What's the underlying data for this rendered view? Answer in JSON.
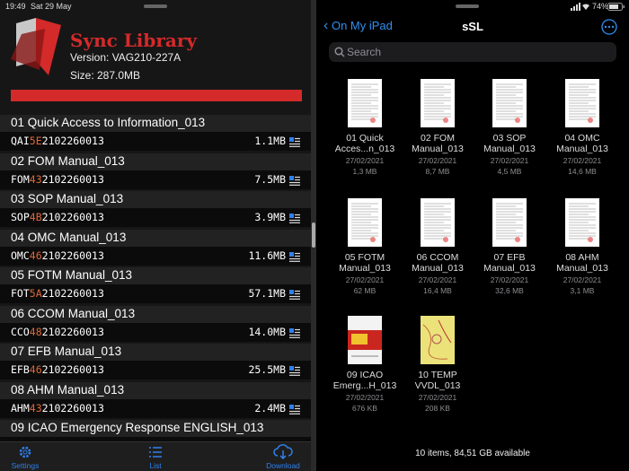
{
  "status": {
    "time": "19:49",
    "date": "Sat 29 May",
    "battery": "74%"
  },
  "library": {
    "title": "Sync Library",
    "version": "Version: VAG210-227A",
    "size": "Size: 287.0MB",
    "items": [
      {
        "name": "01 Quick Access to Information_013",
        "code": [
          "QAI",
          "5E",
          "2102260013"
        ],
        "size": "1.1MB"
      },
      {
        "name": "02 FOM Manual_013",
        "code": [
          "FOM",
          "43",
          "2102260013"
        ],
        "size": "7.5MB"
      },
      {
        "name": "03 SOP Manual_013",
        "code": [
          "SOP",
          "4B",
          "2102260013"
        ],
        "size": "3.9MB"
      },
      {
        "name": "04 OMC Manual_013",
        "code": [
          "OMC",
          "46",
          "2102260013"
        ],
        "size": "11.6MB"
      },
      {
        "name": "05 FOTM Manual_013",
        "code": [
          "FOT",
          "5A",
          "2102260013"
        ],
        "size": "57.1MB"
      },
      {
        "name": "06 CCOM Manual_013",
        "code": [
          "CCO",
          "48",
          "2102260013"
        ],
        "size": "14.0MB"
      },
      {
        "name": "07 EFB Manual_013",
        "code": [
          "EFB",
          "46",
          "2102260013"
        ],
        "size": "25.5MB"
      },
      {
        "name": "08 AHM Manual_013",
        "code": [
          "AHM",
          "43",
          "2102260013"
        ],
        "size": "2.4MB"
      },
      {
        "name": "09 ICAO Emergency Response ENGLISH_013"
      }
    ],
    "tabs": [
      "Settings",
      "List",
      "Download"
    ]
  },
  "files": {
    "back": "On My iPad",
    "title": "sSL",
    "search": "Search",
    "items": [
      {
        "name": [
          "01 Quick",
          "Acces...n_013"
        ],
        "date": "27/02/2021",
        "size": "1,3 MB"
      },
      {
        "name": [
          "02 FOM",
          "Manual_013"
        ],
        "date": "27/02/2021",
        "size": "8,7 MB"
      },
      {
        "name": [
          "03 SOP",
          "Manual_013"
        ],
        "date": "27/02/2021",
        "size": "4,5 MB"
      },
      {
        "name": [
          "04 OMC",
          "Manual_013"
        ],
        "date": "27/02/2021",
        "size": "14,6 MB"
      },
      {
        "name": [
          "05 FOTM",
          "Manual_013"
        ],
        "date": "27/02/2021",
        "size": "62 MB"
      },
      {
        "name": [
          "06 CCOM",
          "Manual_013"
        ],
        "date": "27/02/2021",
        "size": "16,4 MB"
      },
      {
        "name": [
          "07 EFB",
          "Manual_013"
        ],
        "date": "27/02/2021",
        "size": "32,6 MB"
      },
      {
        "name": [
          "08 AHM",
          "Manual_013"
        ],
        "date": "27/02/2021",
        "size": "3,1 MB"
      },
      {
        "name": [
          "09 ICAO",
          "Emerg...H_013"
        ],
        "date": "27/02/2021",
        "size": "676 KB"
      },
      {
        "name": [
          "10 TEMP",
          "VVDL_013"
        ],
        "date": "27/02/2021",
        "size": "208 KB"
      }
    ],
    "footer": "10 items, 84,51 GB available"
  }
}
